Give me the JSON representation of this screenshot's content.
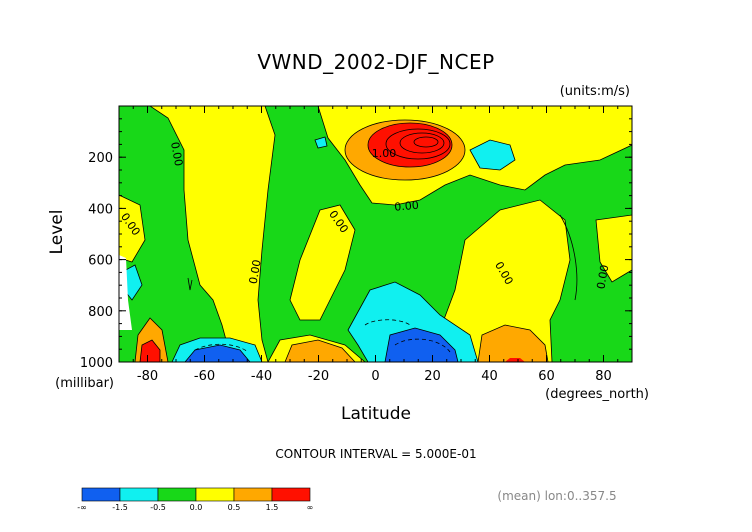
{
  "chart_data": {
    "type": "contour",
    "title": "VWND_2002-DJF_NCEP",
    "units_label": "(units:m/s)",
    "xlabel": "Latitude",
    "xunits_label": "(degrees_north)",
    "ylabel": "Level",
    "yunits_label": "(millibar)",
    "xlim": [
      -90,
      90
    ],
    "ylim": [
      0,
      1000
    ],
    "y_inverted": true,
    "x_ticks": [
      -80,
      -60,
      -40,
      -20,
      0,
      20,
      40,
      60,
      80
    ],
    "x_tick_labels": [
      "-80",
      "-60",
      "-40",
      "-20",
      "0",
      "20",
      "40",
      "60",
      "80"
    ],
    "y_ticks": [
      200,
      400,
      600,
      800,
      1000
    ],
    "y_tick_labels": [
      "200",
      "400",
      "600",
      "800",
      "1000"
    ],
    "contour_interval_text": "CONTOUR INTERVAL = 5.000E-01",
    "footer_text": "(mean) lon:0..357.5",
    "contour_labels": [
      {
        "text": "0.00",
        "x": -71,
        "y": 190,
        "rotation": 80
      },
      {
        "text": "0.00",
        "x": -87,
        "y": 470,
        "rotation": 55
      },
      {
        "text": "0.00",
        "x": -41,
        "y": 650,
        "rotation": -80
      },
      {
        "text": "0.00",
        "x": -14,
        "y": 460,
        "rotation": 55
      },
      {
        "text": "0.00",
        "x": 11,
        "y": 405,
        "rotation": -5
      },
      {
        "text": "1.00",
        "x": 3,
        "y": 200,
        "rotation": 0
      },
      {
        "text": "0.00",
        "x": 44,
        "y": 660,
        "rotation": 60
      },
      {
        "text": "0.00",
        "x": 81,
        "y": 670,
        "rotation": -80
      }
    ],
    "colorbar": {
      "levels": [
        "-∞",
        "-1.5",
        "-0.5",
        "0.0",
        "0.5",
        "1.5",
        "∞"
      ],
      "colors": [
        "#1060f0",
        "#10f0f0",
        "#18d818",
        "#ffff00",
        "#ffa800",
        "#ff1000"
      ]
    },
    "fill_colors": {
      "strong_neg": "#1060f0",
      "neg": "#10f0f0",
      "near_zero": "#18d818",
      "pos": "#ffff00",
      "med_pos": "#ffa800",
      "strong_pos": "#ff1000",
      "missing": "#ffffff"
    }
  }
}
